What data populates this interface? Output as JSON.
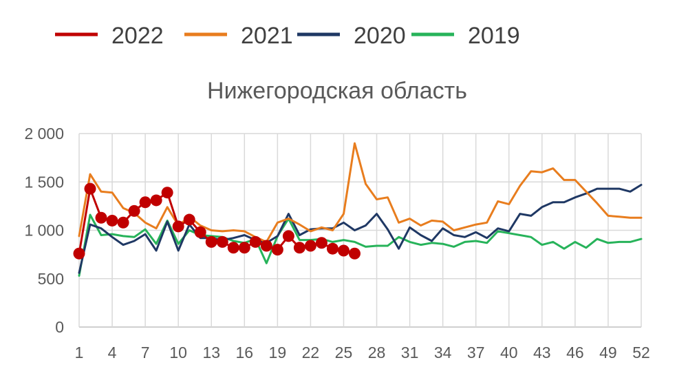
{
  "chart_data": {
    "type": "line",
    "title": "Нижегородская область",
    "xlabel": "",
    "ylabel": "",
    "xlim": [
      1,
      52
    ],
    "ylim": [
      0,
      2000
    ],
    "x_ticks": [
      1,
      4,
      7,
      10,
      13,
      16,
      19,
      22,
      25,
      28,
      31,
      34,
      37,
      40,
      43,
      46,
      49,
      52
    ],
    "y_ticks": [
      0,
      500,
      1000,
      1500,
      2000
    ],
    "y_tick_labels": [
      "0",
      "500",
      "1 000",
      "1 500",
      "2 000"
    ],
    "grid": true,
    "legend_position": "top",
    "series": [
      {
        "name": "2022",
        "color": "#c00000",
        "markers": true,
        "x": [
          1,
          2,
          3,
          4,
          5,
          6,
          7,
          8,
          9,
          10,
          11,
          12,
          13,
          14,
          15,
          16,
          17,
          18,
          19,
          20,
          21,
          22,
          23,
          24,
          25,
          26
        ],
        "values": [
          760,
          1430,
          1130,
          1100,
          1080,
          1200,
          1290,
          1310,
          1390,
          1040,
          1110,
          980,
          880,
          880,
          820,
          820,
          880,
          840,
          800,
          940,
          820,
          840,
          870,
          810,
          790,
          760
        ]
      },
      {
        "name": "2021",
        "color": "#e87d1e",
        "markers": false,
        "x": [
          1,
          2,
          3,
          4,
          5,
          6,
          7,
          8,
          9,
          10,
          11,
          12,
          13,
          14,
          15,
          16,
          17,
          18,
          19,
          20,
          21,
          22,
          23,
          24,
          25,
          26,
          27,
          28,
          29,
          30,
          31,
          32,
          33,
          34,
          35,
          36,
          37,
          38,
          39,
          40,
          41,
          42,
          43,
          44,
          45,
          46,
          47,
          48,
          49,
          50,
          51,
          52
        ],
        "values": [
          940,
          1580,
          1400,
          1390,
          1230,
          1180,
          1080,
          1020,
          1240,
          1050,
          1140,
          1050,
          1000,
          990,
          1000,
          990,
          930,
          880,
          1080,
          1120,
          1060,
          990,
          1030,
          1000,
          1170,
          1900,
          1480,
          1320,
          1340,
          1080,
          1120,
          1050,
          1100,
          1090,
          1000,
          1030,
          1060,
          1080,
          1300,
          1270,
          1460,
          1610,
          1600,
          1640,
          1520,
          1520,
          1400,
          1280,
          1150,
          1140,
          1130,
          1130
        ]
      },
      {
        "name": "2020",
        "color": "#1f3864",
        "markers": false,
        "x": [
          1,
          2,
          3,
          4,
          5,
          6,
          7,
          8,
          9,
          10,
          11,
          12,
          13,
          14,
          15,
          16,
          17,
          18,
          19,
          20,
          21,
          22,
          23,
          24,
          25,
          26,
          27,
          28,
          29,
          30,
          31,
          32,
          33,
          34,
          35,
          36,
          37,
          38,
          39,
          40,
          41,
          42,
          43,
          44,
          45,
          46,
          47,
          48,
          49,
          50,
          51,
          52
        ],
        "values": [
          560,
          1060,
          1020,
          930,
          850,
          890,
          960,
          790,
          1090,
          790,
          1060,
          920,
          920,
          900,
          920,
          950,
          900,
          870,
          940,
          1170,
          950,
          1010,
          1020,
          1020,
          1080,
          1000,
          1050,
          1170,
          1010,
          810,
          1030,
          950,
          890,
          1020,
          950,
          930,
          980,
          920,
          1020,
          990,
          1170,
          1150,
          1240,
          1290,
          1290,
          1340,
          1380,
          1430,
          1430,
          1430,
          1400,
          1470
        ]
      },
      {
        "name": "2019",
        "color": "#27b35a",
        "markers": false,
        "x": [
          1,
          2,
          3,
          4,
          5,
          6,
          7,
          8,
          9,
          10,
          11,
          12,
          13,
          14,
          15,
          16,
          17,
          18,
          19,
          20,
          21,
          22,
          23,
          24,
          25,
          26,
          27,
          28,
          29,
          30,
          31,
          32,
          33,
          34,
          35,
          36,
          37,
          38,
          39,
          40,
          41,
          42,
          43,
          44,
          45,
          46,
          47,
          48,
          49,
          50,
          51,
          52
        ],
        "values": [
          530,
          1160,
          950,
          960,
          940,
          930,
          1010,
          860,
          1100,
          860,
          1000,
          950,
          940,
          930,
          890,
          870,
          910,
          660,
          940,
          1120,
          900,
          900,
          910,
          880,
          900,
          880,
          830,
          840,
          840,
          930,
          880,
          850,
          870,
          860,
          830,
          880,
          890,
          870,
          990,
          970,
          950,
          930,
          850,
          880,
          810,
          880,
          820,
          910,
          870,
          880,
          880,
          910
        ]
      }
    ]
  }
}
